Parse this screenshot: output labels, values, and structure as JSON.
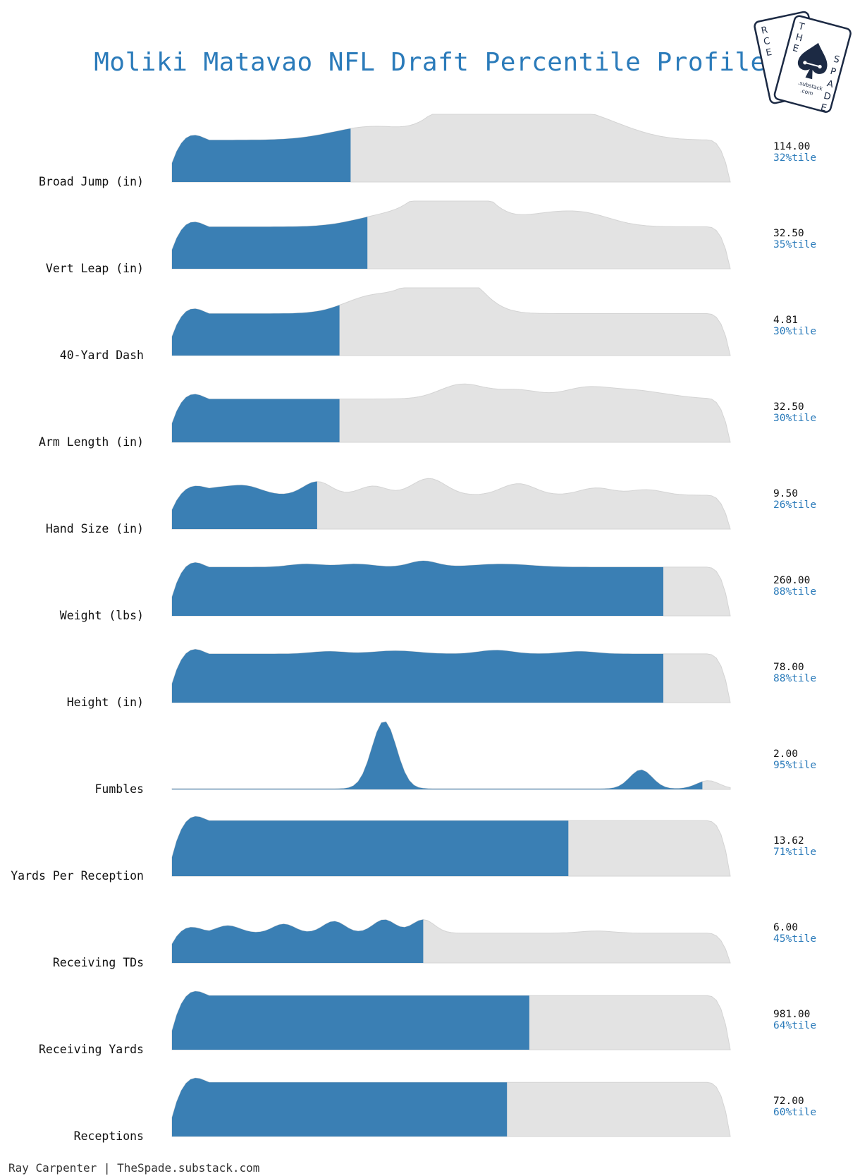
{
  "title": "Moliki Matavao NFL Draft Percentile Profile",
  "footer": "Ray Carpenter | TheSpade.substack.com",
  "logo": {
    "letters_top": [
      "R",
      "C",
      "E"
    ],
    "letters_side": [
      "T",
      "H",
      "E",
      "S",
      "P",
      "A",
      "D",
      "E"
    ],
    "subtext": [
      ".substack",
      ".com"
    ]
  },
  "colors": {
    "title": "#2b7bba",
    "fill_highlight": "#3a7fb4",
    "fill_rest": "#e3e3e3",
    "outline": "#d4d4d4",
    "percentile_text": "#2b7bba",
    "logo_navy": "#1c2a44"
  },
  "chart_data": {
    "type": "area",
    "subtype": "ridgeline-density",
    "title": "Moliki Matavao NFL Draft Percentile Profile",
    "x_label": "",
    "y_label": "",
    "grid": false,
    "legend": "none",
    "series": [
      {
        "metric": "Broad Jump (in)",
        "value": "114.00",
        "percentile_label": "32%tile",
        "percentile": 0.32
      },
      {
        "metric": "Vert Leap (in)",
        "value": "32.50",
        "percentile_label": "35%tile",
        "percentile": 0.35
      },
      {
        "metric": "40-Yard Dash",
        "value": "4.81",
        "percentile_label": "30%tile",
        "percentile": 0.3
      },
      {
        "metric": "Arm Length (in)",
        "value": "32.50",
        "percentile_label": "30%tile",
        "percentile": 0.3
      },
      {
        "metric": "Hand Size (in)",
        "value": "9.50",
        "percentile_label": "26%tile",
        "percentile": 0.26
      },
      {
        "metric": "Weight (lbs)",
        "value": "260.00",
        "percentile_label": "88%tile",
        "percentile": 0.88
      },
      {
        "metric": "Height (in)",
        "value": "78.00",
        "percentile_label": "88%tile",
        "percentile": 0.88
      },
      {
        "metric": "Fumbles",
        "value": "2.00",
        "percentile_label": "95%tile",
        "percentile": 0.95
      },
      {
        "metric": "Yards Per Reception",
        "value": "13.62",
        "percentile_label": "71%tile",
        "percentile": 0.71
      },
      {
        "metric": "Receiving TDs",
        "value": "6.00",
        "percentile_label": "45%tile",
        "percentile": 0.45
      },
      {
        "metric": "Receiving Yards",
        "value": "981.00",
        "percentile_label": "64%tile",
        "percentile": 0.64
      },
      {
        "metric": "Receptions",
        "value": "72.00",
        "percentile_label": "60%tile",
        "percentile": 0.6
      }
    ]
  }
}
